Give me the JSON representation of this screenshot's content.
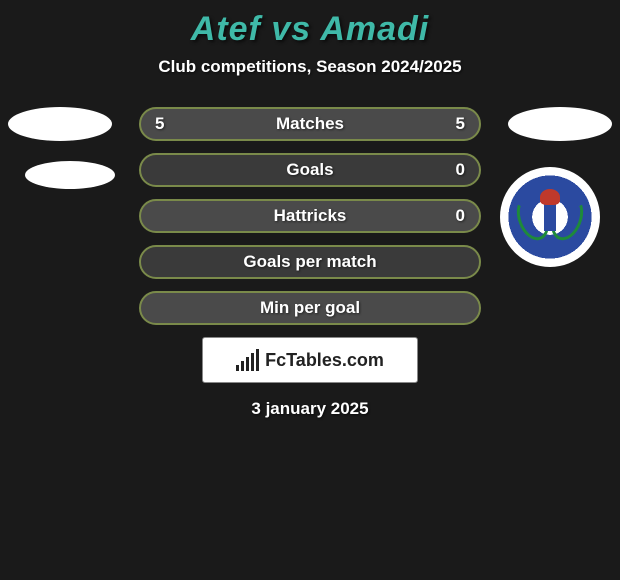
{
  "title": "Atef vs Amadi",
  "title_color": "#3fb9a8",
  "title_fontsize": 34,
  "subtitle": "Club competitions, Season 2024/2025",
  "subtitle_fontsize": 17,
  "background_color": "#1a1a1a",
  "row_bg_even": "#4a4a4a",
  "row_bg_odd": "#3a3a3a",
  "row_border_color": "#7a8a4a",
  "row_label_fontsize": 17,
  "rows": [
    {
      "label": "Matches",
      "left": "5",
      "right": "5"
    },
    {
      "label": "Goals",
      "left": "",
      "right": "0"
    },
    {
      "label": "Hattricks",
      "left": "",
      "right": "0"
    },
    {
      "label": "Goals per match",
      "left": "",
      "right": ""
    },
    {
      "label": "Min per goal",
      "left": "",
      "right": ""
    }
  ],
  "footer_brand": "FcTables.com",
  "date": "3 january 2025",
  "date_fontsize": 17
}
